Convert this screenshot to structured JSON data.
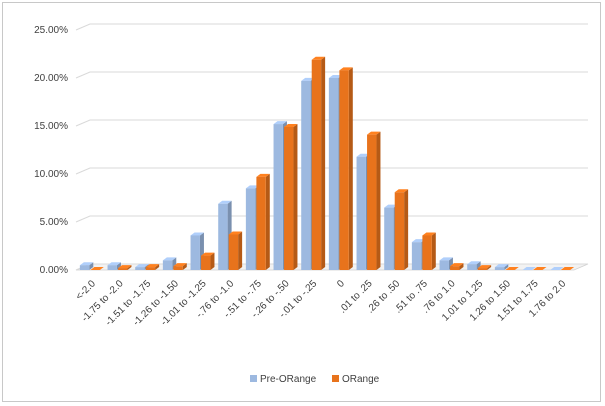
{
  "chart_data": {
    "type": "bar",
    "title": "",
    "xlabel": "",
    "ylabel": "",
    "ylim": [
      0,
      25
    ],
    "yticks": [
      "0.00%",
      "5.00%",
      "10.00%",
      "15.00%",
      "20.00%",
      "25.00%"
    ],
    "grid": true,
    "legend_position": "bottom",
    "categories": [
      "<-2.0",
      "-1.75 to -2.0",
      "-1.51 to -1.75",
      "-1.26 to -1.50",
      "-1.01 to -1.25",
      "-.76 to -1.0",
      "-.51 to -.75",
      "-.26 to -.50",
      "-.01 to -.25",
      "0",
      ".01 to .25",
      ".26 to .50",
      ".51 to .75",
      ".76 to 1.0",
      "1.01 to 1.25",
      "1.26 to 1.50",
      "1.51 to 1.75",
      "1.76 to 2.0"
    ],
    "series": [
      {
        "name": "Pre-ORange",
        "color": "#9db9e0",
        "values": [
          0.5,
          0.5,
          0.3,
          1.0,
          3.6,
          6.9,
          8.5,
          15.2,
          19.7,
          20.0,
          11.8,
          6.5,
          2.9,
          1.0,
          0.6,
          0.3,
          0.0,
          0.0
        ]
      },
      {
        "name": "ORange",
        "color": "#e8731c",
        "values": [
          0.0,
          0.2,
          0.3,
          0.4,
          1.5,
          3.7,
          9.7,
          14.9,
          21.9,
          20.8,
          14.1,
          8.1,
          3.6,
          0.4,
          0.2,
          0.0,
          0.0,
          0.0
        ]
      }
    ]
  }
}
